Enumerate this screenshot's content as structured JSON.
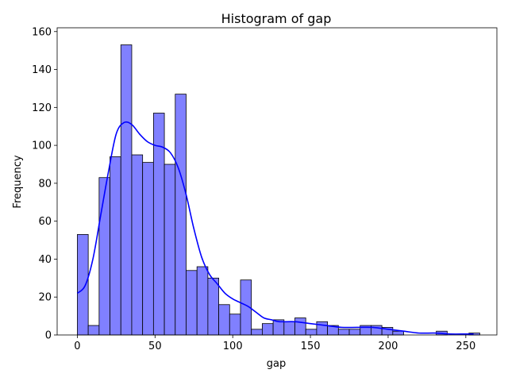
{
  "chart_data": {
    "type": "bar",
    "subtype": "histogram",
    "title": "Histogram of gap",
    "xlabel": "gap",
    "ylabel": "Frequency",
    "xlim": [
      -13,
      270
    ],
    "ylim": [
      0,
      162
    ],
    "xticks": [
      0,
      50,
      100,
      150,
      200,
      250
    ],
    "yticks": [
      0,
      20,
      40,
      60,
      80,
      100,
      120,
      140,
      160
    ],
    "bin_width": 7,
    "bin_starts": [
      0,
      7,
      14,
      21,
      28,
      35,
      42,
      49,
      56,
      63,
      70,
      77,
      84,
      91,
      98,
      105,
      112,
      119,
      126,
      133,
      140,
      147,
      154,
      161,
      168,
      175,
      182,
      189,
      196,
      203,
      210,
      217,
      224,
      231,
      238,
      245,
      252
    ],
    "values": [
      53,
      5,
      83,
      94,
      153,
      95,
      91,
      117,
      90,
      127,
      34,
      36,
      30,
      16,
      11,
      29,
      3,
      6,
      8,
      7,
      9,
      3,
      7,
      5,
      3,
      3,
      5,
      5,
      4,
      2,
      0,
      0,
      0,
      2,
      0,
      0,
      1
    ],
    "kde": {
      "x": [
        0,
        5,
        10,
        15,
        20,
        25,
        30,
        35,
        40,
        45,
        50,
        55,
        60,
        65,
        70,
        75,
        80,
        85,
        90,
        95,
        100,
        105,
        110,
        115,
        120,
        125,
        130,
        140,
        150,
        160,
        170,
        180,
        190,
        200,
        210,
        220,
        230,
        240,
        250,
        255
      ],
      "y": [
        22,
        26,
        40,
        63,
        86,
        106,
        112,
        111,
        106,
        102,
        100,
        99,
        96,
        88,
        74,
        56,
        41,
        32,
        27,
        22,
        19,
        17,
        15,
        12,
        9,
        8,
        7,
        7,
        6,
        5,
        4,
        4,
        4,
        3,
        2,
        1,
        1,
        0.5,
        0.5,
        0.5
      ]
    },
    "bar_color": "#8080ff",
    "bar_edge_color": "#000000",
    "kde_color": "#0000ff",
    "grid": false,
    "legend": "none"
  }
}
